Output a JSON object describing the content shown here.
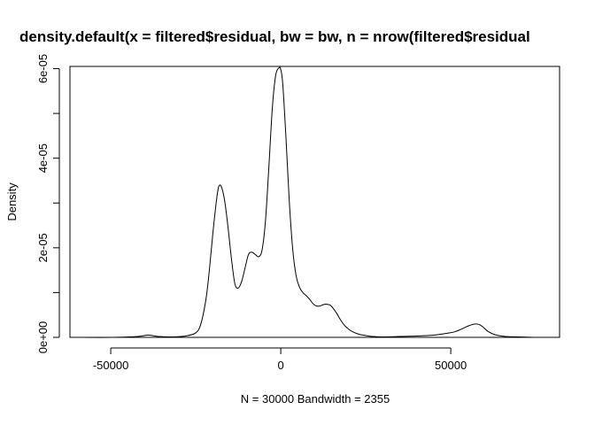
{
  "chart_data": {
    "type": "line",
    "title": "density.default(x = filtered$residual, bw = bw, n = nrow(filtered$residual",
    "xlabel": "N = 30000   Bandwidth = 2355",
    "ylabel": "Density",
    "xlim": [
      -62000,
      82000
    ],
    "ylim": [
      0,
      6.05e-05
    ],
    "x_ticks": [
      -50000,
      0,
      50000
    ],
    "x_tick_labels": [
      "-50000",
      "0",
      "50000"
    ],
    "y_ticks": [
      0,
      1e-05,
      2e-05,
      3e-05,
      4e-05,
      5e-05,
      6e-05
    ],
    "y_tick_labels": [
      "0e+00",
      "",
      "2e-05",
      "",
      "4e-05",
      "",
      "6e-05"
    ],
    "grid": false,
    "series": [
      {
        "color": "#000000",
        "x": [
          -60000,
          -50000,
          -42000,
          -39000,
          -36000,
          -32000,
          -28000,
          -25000,
          -23500,
          -22000,
          -21000,
          -20000,
          -19000,
          -18300,
          -17500,
          -16500,
          -15500,
          -14500,
          -13500,
          -12500,
          -11500,
          -10500,
          -9500,
          -8500,
          -7500,
          -6500,
          -5500,
          -4500,
          -3500,
          -2500,
          -1500,
          -500,
          0,
          600,
          1500,
          2500,
          3500,
          4500,
          5500,
          6500,
          7500,
          8500,
          9500,
          10500,
          11500,
          12500,
          13500,
          14500,
          15500,
          16500,
          17500,
          18500,
          19500,
          21000,
          23000,
          25000,
          27000,
          30000,
          35000,
          40000,
          45000,
          48000,
          51000,
          53000,
          55000,
          56500,
          57500,
          58500,
          59500,
          61000,
          63000,
          66000,
          70000,
          75000,
          80000
        ],
        "y": [
          0,
          0,
          2e-07,
          5e-07,
          2e-07,
          1e-07,
          3e-07,
          1e-06,
          3e-06,
          8.5e-06,
          1.5e-05,
          2.3e-05,
          3e-05,
          3.35e-05,
          3.37e-05,
          3.05e-05,
          2.45e-05,
          1.75e-05,
          1.2e-05,
          1.1e-05,
          1.25e-05,
          1.55e-05,
          1.85e-05,
          1.9e-05,
          1.85e-05,
          1.8e-05,
          1.95e-05,
          2.6e-05,
          3.8e-05,
          5.1e-05,
          5.85e-05,
          6.02e-05,
          5.98e-05,
          5.65e-05,
          4.5e-05,
          3.05e-05,
          1.98e-05,
          1.38e-05,
          1.12e-05,
          1e-05,
          9.3e-06,
          8.5e-06,
          7.5e-06,
          7e-06,
          7e-06,
          7.3e-06,
          7.4e-06,
          7.2e-06,
          6.4e-06,
          5.3e-06,
          4e-06,
          2.9e-06,
          2.1e-06,
          1.3e-06,
          7e-07,
          4e-07,
          2e-07,
          1e-07,
          2e-07,
          3e-07,
          5e-07,
          8e-07,
          1.2e-06,
          1.8e-06,
          2.5e-06,
          2.9e-06,
          3e-06,
          2.8e-06,
          2.3e-06,
          1.3e-06,
          6e-07,
          2e-07,
          1e-07,
          0,
          0
        ]
      }
    ]
  }
}
